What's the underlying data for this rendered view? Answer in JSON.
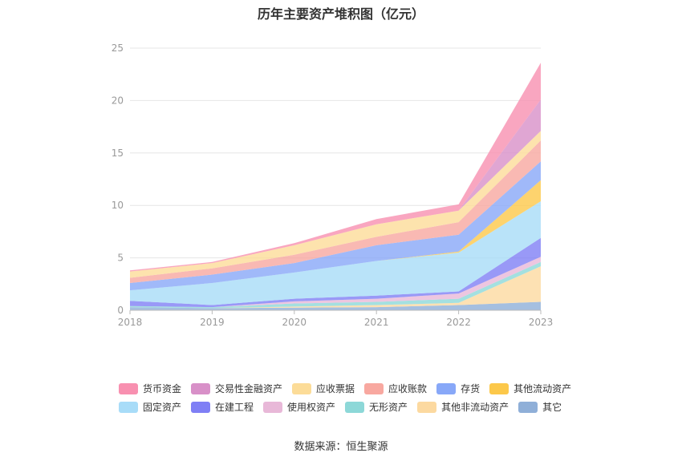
{
  "chart_data": {
    "type": "area",
    "stacked": true,
    "title": "历年主要资产堆积图（亿元）",
    "x": [
      "2018",
      "2019",
      "2020",
      "2021",
      "2022",
      "2023"
    ],
    "ylim": [
      0,
      25
    ],
    "yticks": [
      "0",
      "5",
      "10",
      "15",
      "20",
      "25"
    ],
    "grid": true,
    "legend_position": "bottom",
    "series": [
      {
        "name": "其它",
        "color": "#8fafd8",
        "values": [
          0.3,
          0.2,
          0.25,
          0.3,
          0.5,
          0.8
        ]
      },
      {
        "name": "其他非流动资产",
        "color": "#fcd9a0",
        "values": [
          0.0,
          0.0,
          0.1,
          0.2,
          0.2,
          3.4
        ]
      },
      {
        "name": "无形资产",
        "color": "#8dd8d8",
        "values": [
          0.1,
          0.1,
          0.3,
          0.3,
          0.4,
          0.4
        ]
      },
      {
        "name": "使用权资产",
        "color": "#e8b8d8",
        "values": [
          0.0,
          0.0,
          0.2,
          0.3,
          0.5,
          0.5
        ]
      },
      {
        "name": "在建工程",
        "color": "#7f7ff5",
        "values": [
          0.5,
          0.2,
          0.25,
          0.3,
          0.2,
          1.8
        ]
      },
      {
        "name": "固定资产",
        "color": "#a8dcf8",
        "values": [
          1.0,
          2.1,
          2.5,
          3.3,
          3.7,
          3.5
        ]
      },
      {
        "name": "其他流动资产",
        "color": "#fcc84a",
        "values": [
          0.0,
          0.0,
          0.0,
          0.0,
          0.1,
          2.0
        ]
      },
      {
        "name": "存货",
        "color": "#88a8f8",
        "values": [
          0.7,
          0.8,
          0.9,
          1.5,
          1.6,
          1.8
        ]
      },
      {
        "name": "应收账款",
        "color": "#f8a8a0",
        "values": [
          0.5,
          0.6,
          0.8,
          0.8,
          1.2,
          2.0
        ]
      },
      {
        "name": "应收票据",
        "color": "#fcdc98",
        "values": [
          0.6,
          0.5,
          0.9,
          1.2,
          1.1,
          0.9
        ]
      },
      {
        "name": "交易性金融资产",
        "color": "#d890c8",
        "values": [
          0.0,
          0.0,
          0.0,
          0.0,
          0.0,
          3.0
        ]
      },
      {
        "name": "货币资金",
        "color": "#f890b0",
        "values": [
          0.1,
          0.1,
          0.2,
          0.5,
          0.6,
          3.5
        ]
      }
    ]
  },
  "legend": [
    [
      {
        "name": "货币资金",
        "color": "#f890b0"
      },
      {
        "name": "交易性金融资产",
        "color": "#d890c8"
      },
      {
        "name": "应收票据",
        "color": "#fcdc98"
      },
      {
        "name": "应收账款",
        "color": "#f8a8a0"
      },
      {
        "name": "存货",
        "color": "#88a8f8"
      },
      {
        "name": "其他流动资产",
        "color": "#fcc84a"
      }
    ],
    [
      {
        "name": "固定资产",
        "color": "#a8dcf8"
      },
      {
        "name": "在建工程",
        "color": "#7f7ff5"
      },
      {
        "name": "使用权资产",
        "color": "#e8b8d8"
      },
      {
        "name": "无形资产",
        "color": "#8dd8d8"
      },
      {
        "name": "其他非流动资产",
        "color": "#fcd9a0"
      },
      {
        "name": "其它",
        "color": "#8fafd8"
      }
    ]
  ],
  "source": "数据来源：恒生聚源"
}
